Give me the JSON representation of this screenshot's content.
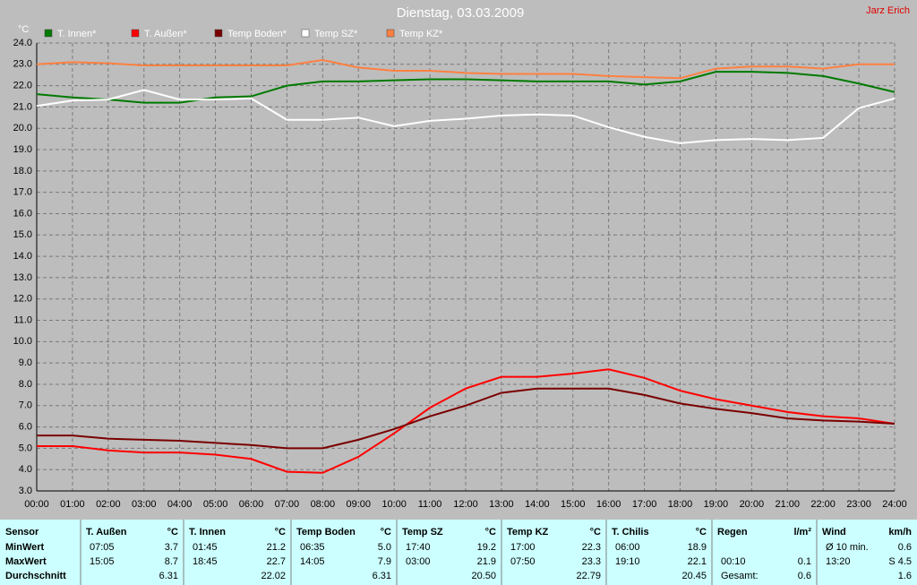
{
  "chart_data": {
    "type": "line",
    "title": "Dienstag, 03.03.2009",
    "author": "Jarz Erich",
    "y_label": "°C",
    "x": [
      0,
      1,
      2,
      3,
      4,
      5,
      6,
      7,
      8,
      9,
      10,
      11,
      12,
      13,
      14,
      15,
      16,
      17,
      18,
      19,
      20,
      21,
      22,
      23,
      24
    ],
    "xlim": [
      0,
      24
    ],
    "xticks": [
      {
        "value": 0,
        "label": "00:00"
      },
      {
        "value": 1,
        "label": "01:00"
      },
      {
        "value": 2,
        "label": "02:00"
      },
      {
        "value": 3,
        "label": "03:00"
      },
      {
        "value": 4,
        "label": "04:00"
      },
      {
        "value": 5,
        "label": "05:00"
      },
      {
        "value": 6,
        "label": "06:00"
      },
      {
        "value": 7,
        "label": "07:00"
      },
      {
        "value": 8,
        "label": "08:00"
      },
      {
        "value": 9,
        "label": "09:00"
      },
      {
        "value": 10,
        "label": "10:00"
      },
      {
        "value": 11,
        "label": "11:00"
      },
      {
        "value": 12,
        "label": "12:00"
      },
      {
        "value": 13,
        "label": "13:00"
      },
      {
        "value": 14,
        "label": "14:00"
      },
      {
        "value": 15,
        "label": "15:00"
      },
      {
        "value": 16,
        "label": "16:00"
      },
      {
        "value": 17,
        "label": "17:00"
      },
      {
        "value": 18,
        "label": "18:00"
      },
      {
        "value": 19,
        "label": "19:00"
      },
      {
        "value": 20,
        "label": "20:00"
      },
      {
        "value": 21,
        "label": "21:00"
      },
      {
        "value": 22,
        "label": "22:00"
      },
      {
        "value": 23,
        "label": "23:00"
      },
      {
        "value": 24,
        "label": "24:00"
      }
    ],
    "ylim": [
      3,
      24
    ],
    "yticks": [
      {
        "value": 3,
        "label": "3.0"
      },
      {
        "value": 4,
        "label": "4.0"
      },
      {
        "value": 5,
        "label": "5.0"
      },
      {
        "value": 6,
        "label": "6.0"
      },
      {
        "value": 7,
        "label": "7.0"
      },
      {
        "value": 8,
        "label": "8.0"
      },
      {
        "value": 9,
        "label": "9.0"
      },
      {
        "value": 10,
        "label": "10.0"
      },
      {
        "value": 11,
        "label": "11.0"
      },
      {
        "value": 12,
        "label": "12.0"
      },
      {
        "value": 13,
        "label": "13.0"
      },
      {
        "value": 14,
        "label": "14.0"
      },
      {
        "value": 15,
        "label": "15.0"
      },
      {
        "value": 16,
        "label": "16.0"
      },
      {
        "value": 17,
        "label": "17.0"
      },
      {
        "value": 18,
        "label": "18.0"
      },
      {
        "value": 19,
        "label": "19.0"
      },
      {
        "value": 20,
        "label": "20.0"
      },
      {
        "value": 21,
        "label": "21.0"
      },
      {
        "value": 22,
        "label": "22.0"
      },
      {
        "value": 23,
        "label": "23.0"
      },
      {
        "value": 24,
        "label": "24.0"
      }
    ],
    "grid": true,
    "series": [
      {
        "name": "T. Innen*",
        "color": "#007a00",
        "values": [
          21.6,
          21.45,
          21.35,
          21.2,
          21.2,
          21.45,
          21.5,
          22.0,
          22.2,
          22.2,
          22.25,
          22.3,
          22.3,
          22.25,
          22.2,
          22.2,
          22.2,
          22.05,
          22.2,
          22.65,
          22.65,
          22.6,
          22.45,
          22.1,
          21.7
        ]
      },
      {
        "name": "T. Außen*",
        "color": "#ff0000",
        "values": [
          5.1,
          5.1,
          4.9,
          4.8,
          4.8,
          4.7,
          4.5,
          3.9,
          3.85,
          4.6,
          5.7,
          6.9,
          7.8,
          8.35,
          8.35,
          8.5,
          8.7,
          8.3,
          7.7,
          7.3,
          7.0,
          6.7,
          6.5,
          6.4,
          6.15
        ]
      },
      {
        "name": "Temp Boden*",
        "color": "#7a0000",
        "values": [
          5.6,
          5.6,
          5.45,
          5.4,
          5.35,
          5.25,
          5.15,
          5.0,
          5.0,
          5.4,
          5.9,
          6.5,
          7.0,
          7.6,
          7.8,
          7.8,
          7.8,
          7.5,
          7.1,
          6.85,
          6.65,
          6.4,
          6.3,
          6.25,
          6.15
        ]
      },
      {
        "name": "Temp SZ*",
        "color": "#ffffff",
        "values": [
          21.05,
          21.3,
          21.35,
          21.8,
          21.35,
          21.35,
          21.4,
          20.4,
          20.4,
          20.5,
          20.1,
          20.35,
          20.45,
          20.6,
          20.65,
          20.6,
          20.05,
          19.6,
          19.3,
          19.45,
          19.5,
          19.45,
          19.55,
          20.95,
          21.4
        ]
      },
      {
        "name": "Temp KZ*",
        "color": "#ff8040",
        "values": [
          23.0,
          23.1,
          23.05,
          22.95,
          22.95,
          22.95,
          22.95,
          22.95,
          23.2,
          22.85,
          22.7,
          22.7,
          22.6,
          22.55,
          22.55,
          22.55,
          22.45,
          22.4,
          22.35,
          22.8,
          22.9,
          22.9,
          22.8,
          23.0,
          23.0
        ]
      }
    ]
  },
  "table": {
    "sensor": {
      "header": "Sensor",
      "min": "MinWert",
      "max": "MaxWert",
      "avg": "Durchschnitt"
    },
    "columns": [
      {
        "header": "T. Außen",
        "unit": "°C",
        "min": {
          "left": "07:05",
          "right": "3.7"
        },
        "max": {
          "left": "15:05",
          "right": "8.7"
        },
        "avg": {
          "right": "6.31"
        }
      },
      {
        "header": "T. Innen",
        "unit": "°C",
        "min": {
          "left": "01:45",
          "right": "21.2"
        },
        "max": {
          "left": "18:45",
          "right": "22.7"
        },
        "avg": {
          "right": "22.02"
        }
      },
      {
        "header": "Temp Boden",
        "unit": "°C",
        "min": {
          "left": "06:35",
          "right": "5.0"
        },
        "max": {
          "left": "14:05",
          "right": "7.9"
        },
        "avg": {
          "right": "6.31"
        }
      },
      {
        "header": "Temp SZ",
        "unit": "°C",
        "min": {
          "left": "17:40",
          "right": "19.2"
        },
        "max": {
          "left": "03:00",
          "right": "21.9"
        },
        "avg": {
          "right": "20.50"
        }
      },
      {
        "header": "Temp KZ",
        "unit": "°C",
        "min": {
          "left": "17:00",
          "right": "22.3"
        },
        "max": {
          "left": "07:50",
          "right": "23.3"
        },
        "avg": {
          "right": "22.79"
        }
      },
      {
        "header": "T. Chilis",
        "unit": "°C",
        "min": {
          "left": "06:00",
          "right": "18.9"
        },
        "max": {
          "left": "19:10",
          "right": "22.1"
        },
        "avg": {
          "right": "20.45"
        }
      },
      {
        "header": "Regen",
        "unit": "l/m²",
        "max": {
          "left": "00:10",
          "right": "0.1"
        },
        "avg": {
          "left": "Gesamt:",
          "right": "0.6"
        }
      },
      {
        "header": "Wind",
        "unit": "km/h",
        "min": {
          "left": "Ø 10 min.",
          "right": "0.6"
        },
        "max": {
          "left": "13:20",
          "right": "S 4.5"
        },
        "avg": {
          "right": "1.6"
        }
      }
    ]
  }
}
